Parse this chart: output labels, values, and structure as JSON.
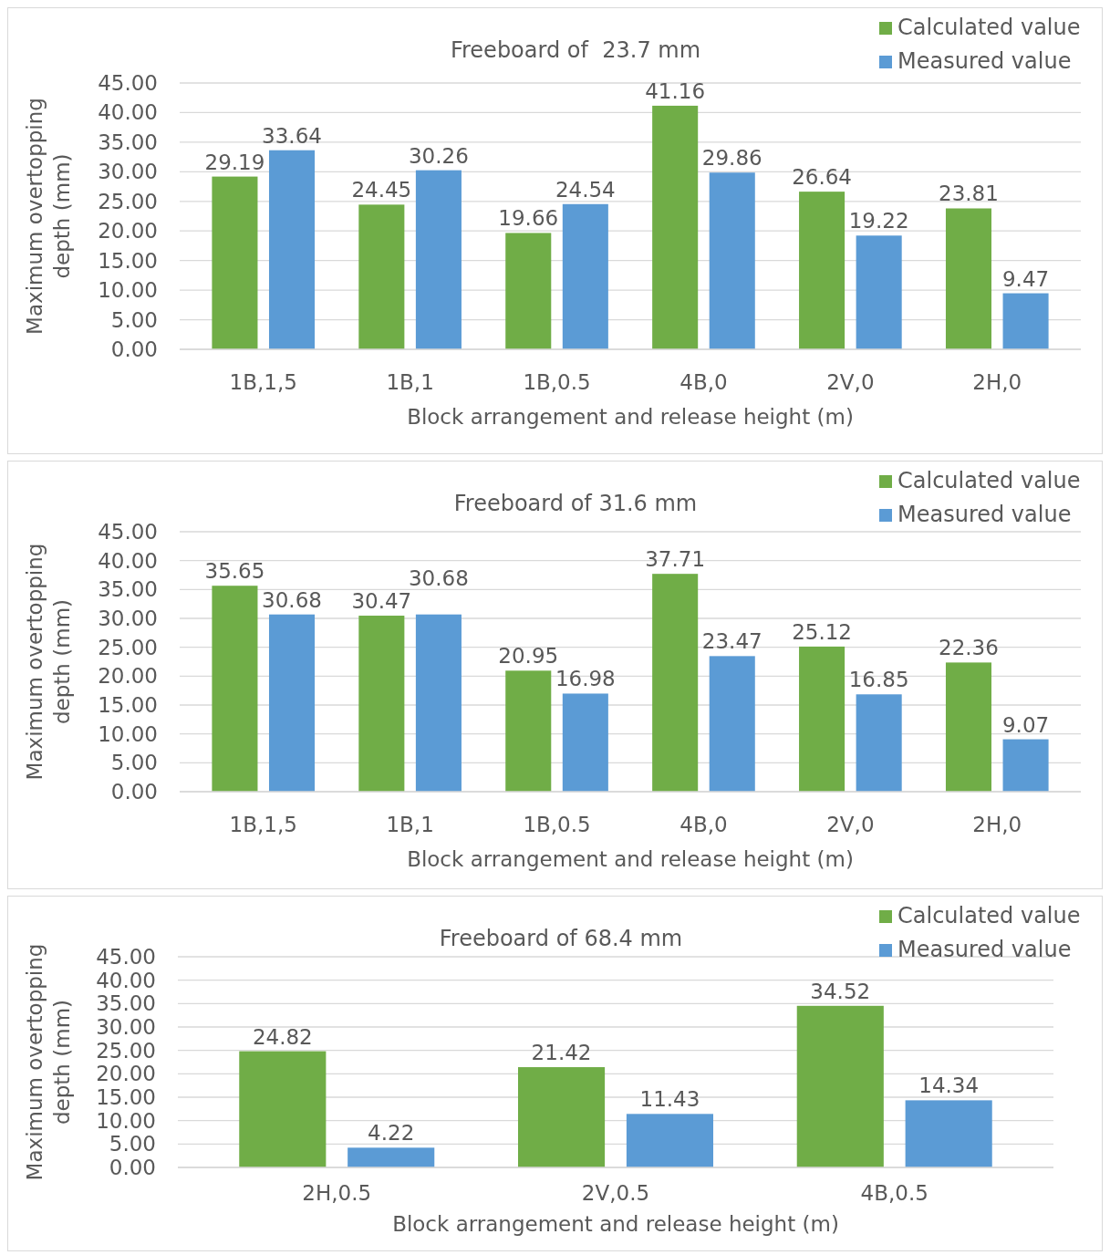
{
  "chart_data": [
    {
      "type": "bar",
      "title": "Freeboard of  23.7 mm",
      "xlabel": "Block arrangement and release height (m)",
      "ylabel": "Maximum overtopping depth (mm)",
      "categories": [
        "1B,1,5",
        "1B,1",
        "1B,0.5",
        "4B,0",
        "2V,0",
        "2H,0"
      ],
      "series": [
        {
          "name": "Calculated value",
          "color": "#70ad47",
          "values": [
            29.19,
            24.45,
            19.66,
            41.16,
            26.64,
            23.81
          ]
        },
        {
          "name": "Measured value",
          "color": "#5b9bd5",
          "values": [
            33.64,
            30.26,
            24.54,
            29.86,
            19.22,
            9.47
          ]
        }
      ],
      "ylim": [
        0,
        45
      ],
      "yticks": [
        {
          "value": 0,
          "label": "0.00"
        },
        {
          "value": 5,
          "label": "5.00"
        },
        {
          "value": 10,
          "label": "10.00"
        },
        {
          "value": 15,
          "label": "15.00"
        },
        {
          "value": 20,
          "label": "20.00"
        },
        {
          "value": 25,
          "label": "25.00"
        },
        {
          "value": 30,
          "label": "30.00"
        },
        {
          "value": 35,
          "label": "35.00"
        },
        {
          "value": 40,
          "label": "40.00"
        },
        {
          "value": 45,
          "label": "45.00"
        }
      ],
      "grid": "y",
      "legend": "top right",
      "data_labels": true
    },
    {
      "type": "bar",
      "title": "Freeboard of 31.6 mm",
      "xlabel": "Block arrangement and release height (m)",
      "ylabel": "Maximum overtopping depth (mm)",
      "categories": [
        "1B,1,5",
        "1B,1",
        "1B,0.5",
        "4B,0",
        "2V,0",
        "2H,0"
      ],
      "series": [
        {
          "name": "Calculated value",
          "color": "#70ad47",
          "values": [
            35.65,
            30.47,
            20.95,
            37.71,
            25.12,
            22.36
          ]
        },
        {
          "name": "Measured value",
          "color": "#5b9bd5",
          "values": [
            30.68,
            30.68,
            16.98,
            23.47,
            16.85,
            9.07
          ]
        }
      ],
      "ylim": [
        0,
        45
      ],
      "yticks": [
        {
          "value": 0,
          "label": "0.00"
        },
        {
          "value": 5,
          "label": "5.00"
        },
        {
          "value": 10,
          "label": "10.00"
        },
        {
          "value": 15,
          "label": "15.00"
        },
        {
          "value": 20,
          "label": "20.00"
        },
        {
          "value": 25,
          "label": "25.00"
        },
        {
          "value": 30,
          "label": "30.00"
        },
        {
          "value": 35,
          "label": "35.00"
        },
        {
          "value": 40,
          "label": "40.00"
        },
        {
          "value": 45,
          "label": "45.00"
        }
      ],
      "grid": "y",
      "legend": "top right",
      "data_labels": true
    },
    {
      "type": "bar",
      "title": "Freeboard of 68.4 mm",
      "xlabel": "Block arrangement and release height (m)",
      "ylabel": "Maximum overtopping depth (mm)",
      "categories": [
        "2H,0.5",
        "2V,0.5",
        "4B,0.5"
      ],
      "series": [
        {
          "name": "Calculated value",
          "color": "#70ad47",
          "values": [
            24.82,
            21.42,
            34.52
          ]
        },
        {
          "name": "Measured value",
          "color": "#5b9bd5",
          "values": [
            4.22,
            11.43,
            14.34
          ]
        }
      ],
      "ylim": [
        0,
        45
      ],
      "yticks": [
        {
          "value": 0,
          "label": "0.00"
        },
        {
          "value": 5,
          "label": "5.00"
        },
        {
          "value": 10,
          "label": "10.00"
        },
        {
          "value": 15,
          "label": "15.00"
        },
        {
          "value": 20,
          "label": "20.00"
        },
        {
          "value": 25,
          "label": "25.00"
        },
        {
          "value": 30,
          "label": "30.00"
        },
        {
          "value": 35,
          "label": "35.00"
        },
        {
          "value": 40,
          "label": "40.00"
        },
        {
          "value": 45,
          "label": "45.00"
        }
      ],
      "grid": "y",
      "legend": "top right",
      "data_labels": true
    }
  ]
}
